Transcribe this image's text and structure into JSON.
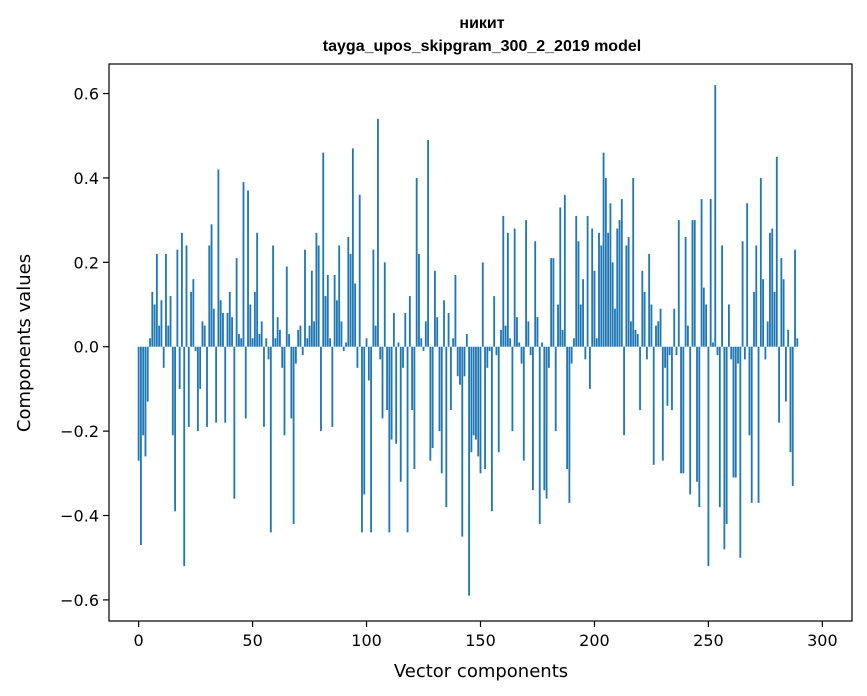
{
  "chart_data": {
    "type": "bar",
    "title": "никит",
    "subtitle": "tayga_upos_skipgram_300_2_2019 model",
    "xlabel": "Vector components",
    "ylabel": "Components values",
    "xlim": [
      -13,
      313
    ],
    "ylim": [
      -0.65,
      0.67
    ],
    "xticks": [
      0,
      50,
      100,
      150,
      200,
      250,
      300
    ],
    "xtick_labels": [
      "0",
      "50",
      "100",
      "150",
      "200",
      "250",
      "300"
    ],
    "yticks": [
      -0.6,
      -0.4,
      -0.2,
      0.0,
      0.2,
      0.4,
      0.6
    ],
    "ytick_labels": [
      "−0.6",
      "−0.4",
      "−0.2",
      "0.0",
      "0.2",
      "0.4",
      "0.6"
    ],
    "bar_color": "#1f77b4",
    "values": [
      -0.27,
      -0.47,
      -0.21,
      -0.26,
      -0.13,
      0.02,
      0.13,
      0.1,
      0.22,
      0.05,
      0.11,
      -0.05,
      0.22,
      0.05,
      0.12,
      -0.21,
      -0.39,
      0.23,
      -0.1,
      0.27,
      -0.52,
      0.24,
      -0.19,
      0.13,
      0.16,
      -0.01,
      -0.2,
      -0.1,
      0.06,
      0.05,
      -0.19,
      0.24,
      0.29,
      0.09,
      -0.18,
      0.42,
      0.11,
      0.08,
      -0.18,
      0.08,
      0.13,
      0.07,
      -0.36,
      0.21,
      0.03,
      0.02,
      0.39,
      -0.17,
      0.37,
      0.1,
      0.02,
      0.13,
      0.27,
      0.03,
      0.06,
      -0.19,
      0.02,
      -0.03,
      -0.44,
      0.24,
      0.02,
      0.07,
      0.04,
      -0.05,
      -0.21,
      0.19,
      0.03,
      -0.17,
      -0.42,
      -0.04,
      0.04,
      0.05,
      -0.02,
      0.23,
      0.02,
      0.05,
      0.18,
      0.06,
      0.27,
      0.24,
      -0.2,
      0.46,
      0.12,
      0.17,
      0.02,
      -0.19,
      0.17,
      0.11,
      0.24,
      0.06,
      -0.01,
      0.01,
      0.26,
      0.22,
      0.47,
      0.15,
      -0.05,
      0.36,
      -0.44,
      -0.35,
      0.02,
      -0.08,
      -0.44,
      0.23,
      0.05,
      0.54,
      -0.03,
      -0.17,
      0.2,
      -0.15,
      -0.44,
      -0.22,
      0.08,
      -0.23,
      0.01,
      -0.32,
      -0.05,
      0.08,
      -0.44,
      0.12,
      -0.15,
      -0.29,
      0.4,
      0.22,
      0.02,
      -0.01,
      0.06,
      0.49,
      -0.27,
      -0.24,
      0.18,
      0.07,
      -0.2,
      -0.3,
      0.11,
      -0.38,
      0.08,
      -0.15,
      0.02,
      0.17,
      -0.07,
      -0.09,
      -0.45,
      -0.07,
      0.03,
      -0.59,
      -0.25,
      -0.21,
      -0.22,
      -0.26,
      -0.3,
      0.2,
      -0.29,
      -0.05,
      -0.01,
      -0.39,
      0.12,
      -0.02,
      -0.25,
      0.04,
      0.31,
      0.05,
      0.27,
      0.02,
      -0.2,
      0.28,
      0.07,
      0.01,
      -0.04,
      -0.27,
      0.3,
      0.06,
      -0.02,
      -0.34,
      0.25,
      0.07,
      -0.42,
      0.01,
      -0.34,
      -0.36,
      -0.05,
      0.21,
      0.21,
      -0.2,
      0.1,
      0.33,
      0.04,
      0.36,
      -0.29,
      -0.37,
      -0.04,
      0.02,
      0.31,
      0.25,
      0.1,
      0.16,
      -0.03,
      0.31,
      -0.1,
      0.28,
      0.18,
      0.02,
      0.27,
      0.24,
      0.46,
      0.4,
      0.27,
      0.34,
      0.2,
      0.09,
      0.28,
      0.3,
      0.35,
      -0.21,
      0.24,
      0.26,
      0.06,
      0.4,
      0.04,
      0.03,
      -0.15,
      0.18,
      0.13,
      -0.03,
      0.22,
      0.1,
      -0.28,
      0.05,
      0.06,
      0.09,
      -0.27,
      -0.05,
      -0.14,
      -0.02,
      -0.15,
      0.09,
      -0.02,
      0.3,
      -0.3,
      -0.3,
      0.26,
      0.05,
      -0.35,
      0.3,
      0.3,
      -0.32,
      -0.38,
      0.35,
      0.14,
      0.1,
      -0.52,
      0.35,
      0.01,
      0.62,
      -0.02,
      -0.38,
      0.24,
      -0.48,
      -0.42,
      0.1,
      -0.03,
      -0.31,
      -0.31,
      -0.04,
      -0.5,
      0.25,
      -0.03,
      0.34,
      -0.21,
      -0.37,
      0.13,
      0.24,
      -0.37,
      0.4,
      0.16,
      -0.03,
      0.06,
      0.27,
      0.28,
      0.13,
      0.45,
      -0.18,
      0.21,
      0.16,
      -0.13,
      0.04,
      -0.25,
      -0.33,
      0.23,
      0.02
    ]
  }
}
